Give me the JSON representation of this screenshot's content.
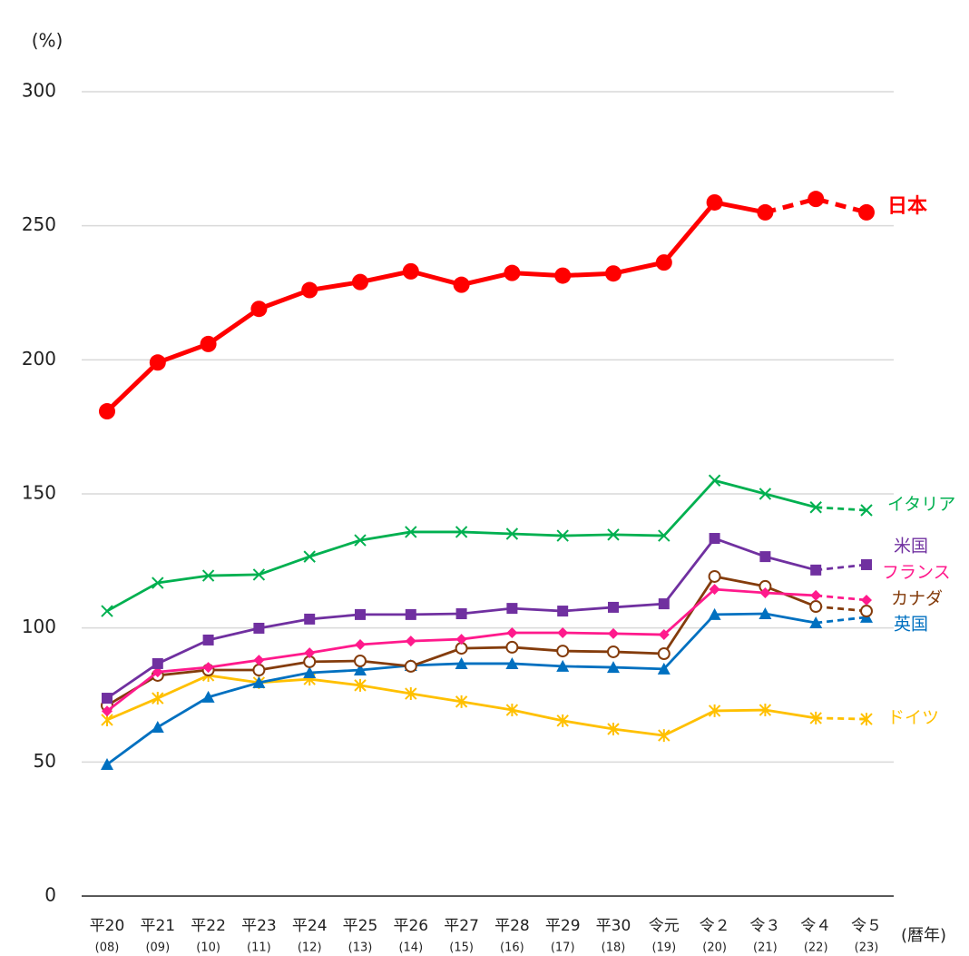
{
  "chart_data": {
    "type": "line",
    "y_unit": "(%)",
    "x_label": "(暦年)",
    "categories": [
      "平20",
      "平21",
      "平22",
      "平23",
      "平24",
      "平25",
      "平26",
      "平27",
      "平28",
      "平29",
      "平30",
      "令元",
      "令２",
      "令３",
      "令４",
      "令５"
    ],
    "category_years": [
      "(08)",
      "(09)",
      "(10)",
      "(11)",
      "(12)",
      "(13)",
      "(14)",
      "(15)",
      "(16)",
      "(17)",
      "(18)",
      "(19)",
      "(20)",
      "(21)",
      "(22)",
      "(23)"
    ],
    "ylim": [
      0,
      300
    ],
    "yticks": [
      0,
      50,
      100,
      150,
      200,
      250,
      300
    ],
    "grid": true,
    "series": [
      {
        "name": "日本",
        "color": "#ff0000",
        "marker": "circle",
        "bold": true,
        "dashed_from": 13,
        "values": [
          180.8,
          199,
          205.9,
          219,
          226,
          229,
          233,
          228,
          232.4,
          231.4,
          232.2,
          236.3,
          258.7,
          255,
          260,
          255
        ]
      },
      {
        "name": "イタリア",
        "color": "#00b050",
        "marker": "x",
        "dashed_from": 14,
        "values": [
          106.3,
          116.8,
          119.5,
          119.9,
          126.6,
          132.7,
          135.8,
          135.8,
          135.1,
          134.4,
          134.8,
          134.4,
          155,
          150,
          145,
          143.9
        ]
      },
      {
        "name": "米国",
        "color": "#7030a0",
        "marker": "square",
        "dashed_from": 14,
        "values": [
          73.8,
          86.7,
          95.5,
          99.9,
          103.3,
          105,
          105,
          105.3,
          107.3,
          106.3,
          107.7,
          109,
          133.4,
          126.6,
          121.6,
          123.6
        ]
      },
      {
        "name": "フランス",
        "color": "#ff1a8c",
        "marker": "diamond",
        "dashed_from": 14,
        "values": [
          69,
          83.6,
          85.3,
          88,
          90.7,
          93.8,
          95.1,
          95.8,
          98.2,
          98.2,
          97.9,
          97.5,
          114.4,
          113.1,
          112.1,
          110.4
        ]
      },
      {
        "name": "カナダ",
        "color": "#843c0c",
        "marker": "open-circle",
        "dashed_from": 14,
        "values": [
          71.1,
          82.3,
          84.3,
          84.3,
          87.4,
          87.7,
          85.7,
          92.4,
          92.8,
          91.4,
          91.1,
          90.4,
          119.2,
          115.5,
          108,
          106.3
        ]
      },
      {
        "name": "英国",
        "color": "#0070c0",
        "marker": "triangle",
        "dashed_from": 14,
        "values": [
          49.1,
          63,
          74.2,
          79.6,
          83.3,
          84.3,
          86,
          86.7,
          86.7,
          85.7,
          85.3,
          84.7,
          105,
          105.3,
          101.9,
          104
        ]
      },
      {
        "name": "ドイツ",
        "color": "#ffc000",
        "marker": "asterisk",
        "dashed_from": 14,
        "values": [
          65.7,
          73.8,
          82.3,
          79.6,
          80.9,
          78.6,
          75.5,
          72.5,
          69.4,
          65.4,
          62.3,
          59.9,
          69.1,
          69.4,
          66.4,
          66
        ]
      }
    ]
  }
}
